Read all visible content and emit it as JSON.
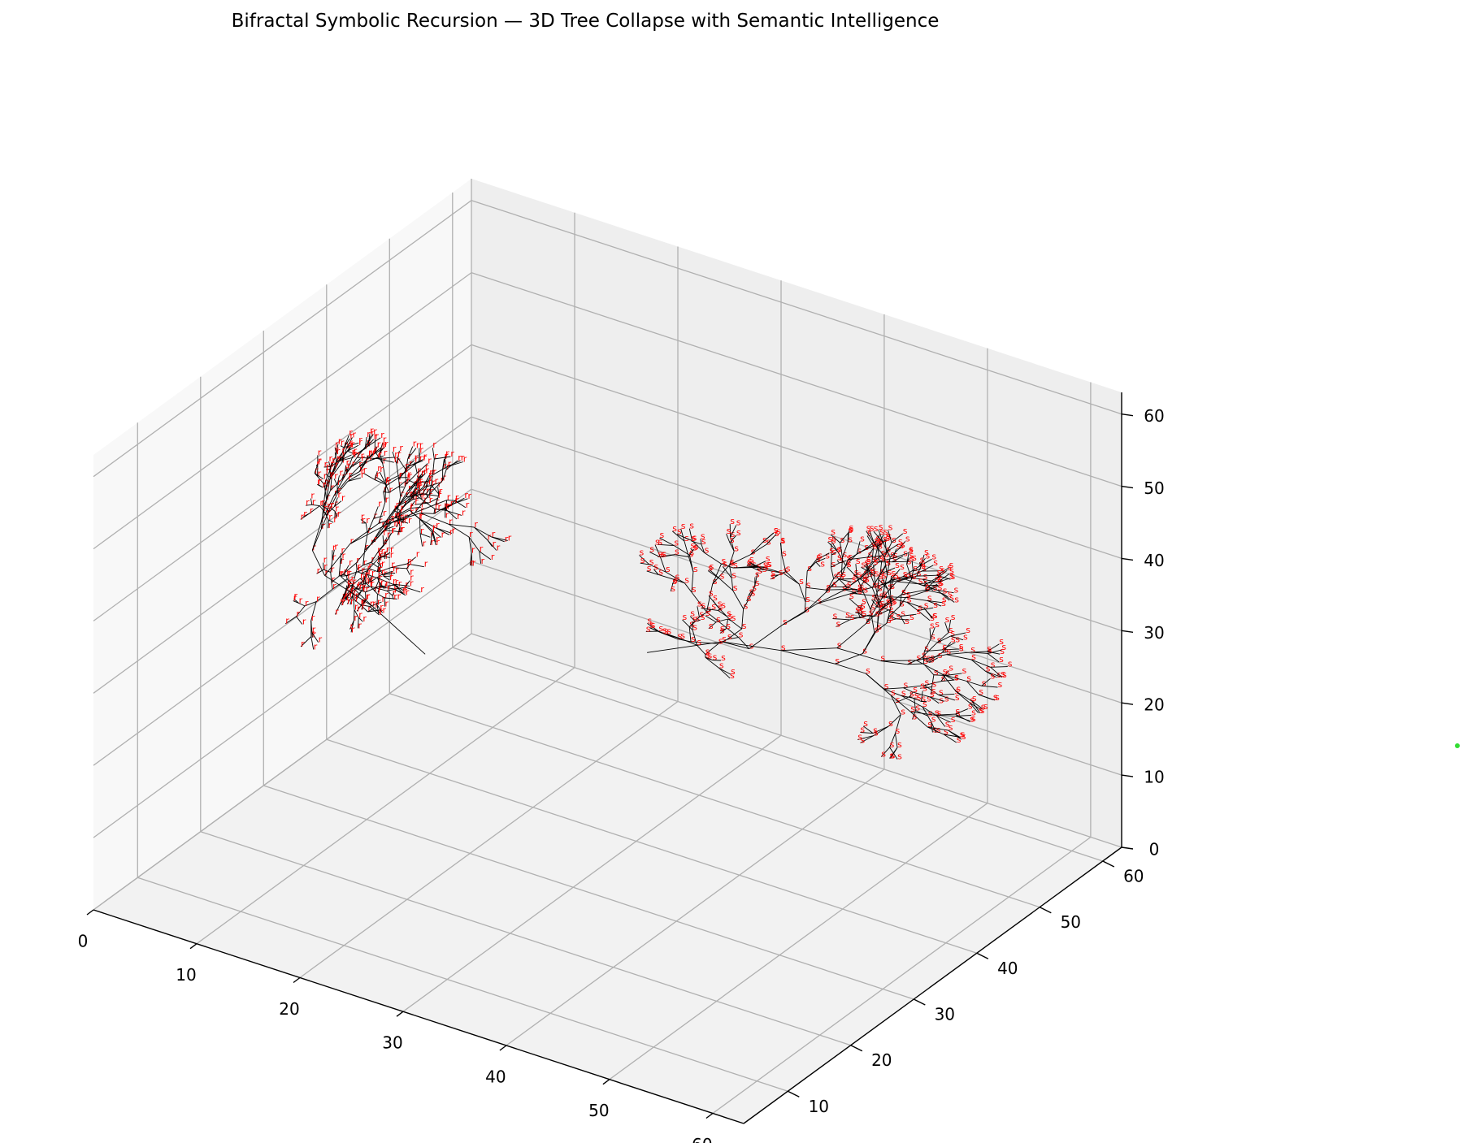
{
  "chart_data": {
    "type": "scatter",
    "projection": "3d",
    "title": "Bifractal Symbolic Recursion — 3D Tree Collapse with Semantic Intelligence",
    "xlabel": "",
    "ylabel": "",
    "zlabel": "",
    "xlim": [
      0,
      63
    ],
    "ylim": [
      3,
      63
    ],
    "zlim": [
      0,
      63
    ],
    "x_ticks": [
      0,
      10,
      20,
      30,
      40,
      50,
      60
    ],
    "y_ticks": [
      10,
      20,
      30,
      40,
      50,
      60
    ],
    "z_ticks": [
      0,
      10,
      20,
      30,
      40,
      50,
      60
    ],
    "grid": true,
    "edge_color": "#000000",
    "label_color": "#ff0000",
    "series": [
      {
        "name": "r",
        "node_label": "r",
        "root": [
          12,
          36,
          20
        ],
        "direction": [
          -1,
          0.3,
          0.4
        ],
        "depth": 9
      },
      {
        "name": "s",
        "node_label": "s",
        "root": [
          28,
          45,
          22
        ],
        "direction": [
          1,
          0.35,
          0.5
        ],
        "depth": 9
      }
    ],
    "outlier": {
      "color": "#33dd33"
    }
  }
}
